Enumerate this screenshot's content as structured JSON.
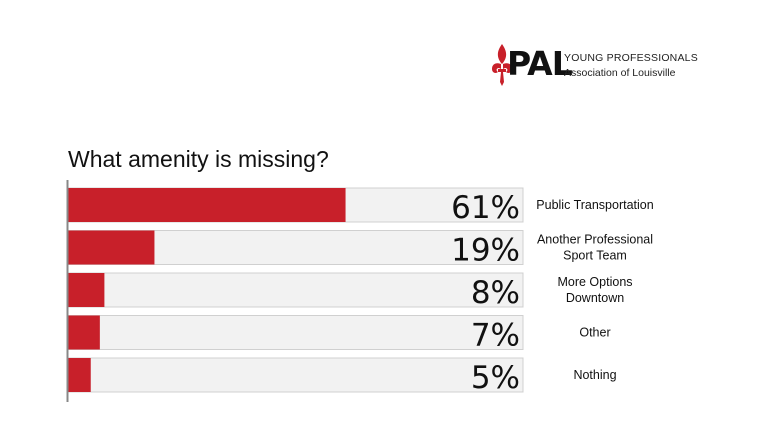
{
  "logo": {
    "mark": "YPAL",
    "mark_visible": "PAL",
    "line1": "YOUNG PROFESSIONALS",
    "line2": "Association of Louisville",
    "accent": "#c8202a",
    "icon": "fleur-de-lis-icon"
  },
  "chart_data": {
    "type": "bar",
    "orientation": "horizontal",
    "title": "What amenity is missing?",
    "categories": [
      [
        "Public Transportation"
      ],
      [
        "Another Professional",
        "Sport Team"
      ],
      [
        "More Options",
        "Downtown"
      ],
      [
        "Other"
      ],
      [
        "Nothing"
      ]
    ],
    "values": [
      61,
      19,
      8,
      7,
      5
    ],
    "value_labels": [
      "61%",
      "19%",
      "8%",
      "7%",
      "5%"
    ],
    "xlim": [
      0,
      100
    ],
    "bar_color": "#c8202a",
    "track_color": "#f2f2f2",
    "grid": false,
    "legend": false
  }
}
